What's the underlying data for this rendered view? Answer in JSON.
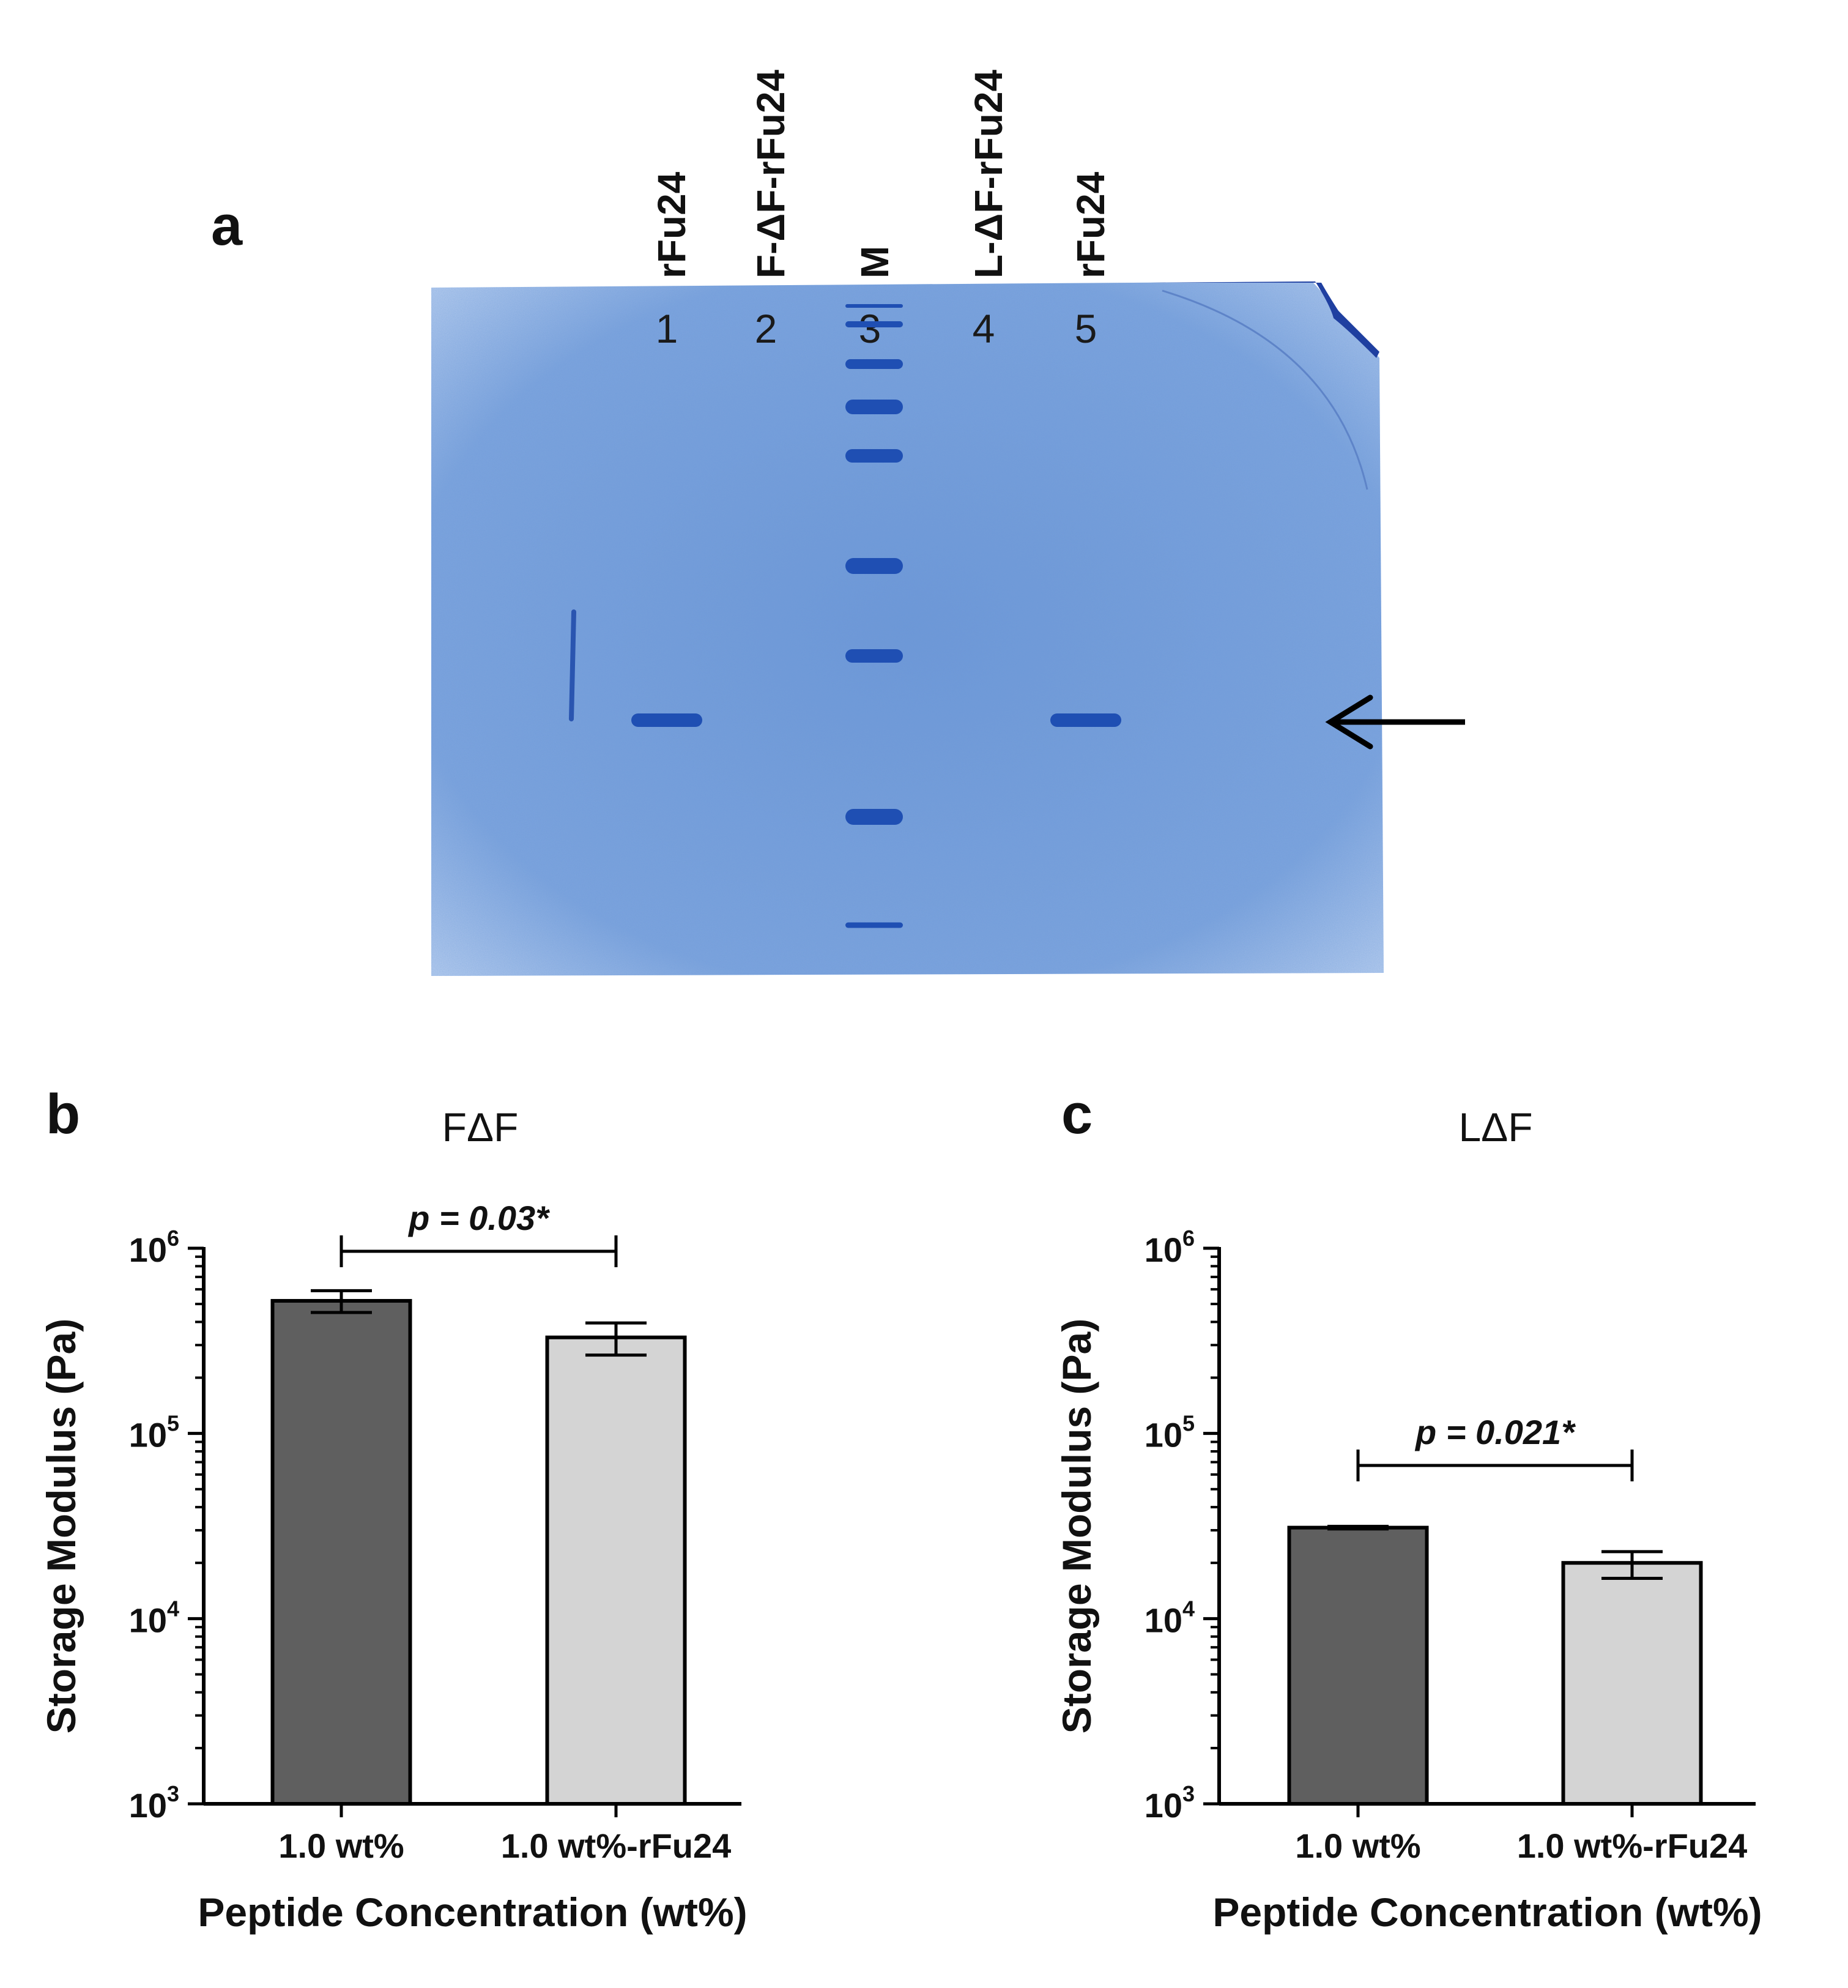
{
  "figure": {
    "panel_labels": {
      "a": "a",
      "b": "b",
      "c": "c"
    }
  },
  "gel": {
    "column_headers": [
      "rFu24",
      "F-ΔF-rFu24",
      "M",
      "L-ΔF-rFu24",
      "rFu24"
    ],
    "lane_numbers": [
      "1",
      "2",
      "3",
      "4",
      "5"
    ],
    "colors": {
      "gel": "#7ea4dc",
      "band": "#1f4fb3",
      "arrow": "#000000"
    },
    "band_lanes": [
      1,
      5
    ]
  },
  "chart_data": [
    {
      "type": "bar",
      "panel": "b",
      "title": "FΔF",
      "categories": [
        "1.0 wt%",
        "1.0 wt%-rFu24"
      ],
      "values": [
        520000,
        330000
      ],
      "error_low": [
        450000,
        265000
      ],
      "error_high": [
        590000,
        395000
      ],
      "bar_colors": [
        "#5f5f5f",
        "#d4d4d4"
      ],
      "ylabel": "Storage Modulus (Pa)",
      "xlabel": "Peptide Concentration (wt%)",
      "yscale": "log",
      "ylim": [
        1000,
        1000000
      ],
      "ytick_bases": [
        "10",
        "10",
        "10",
        "10"
      ],
      "ytick_exponents": [
        "3",
        "4",
        "5",
        "6"
      ],
      "annotation": "p = 0.03*",
      "grid": false
    },
    {
      "type": "bar",
      "panel": "c",
      "title": "LΔF",
      "categories": [
        "1.0 wt%",
        "1.0 wt%-rFu24"
      ],
      "values": [
        31000,
        20000
      ],
      "error_low": [
        30500,
        16500
      ],
      "error_high": [
        31500,
        23000
      ],
      "bar_colors": [
        "#5f5f5f",
        "#d4d4d4"
      ],
      "ylabel": "Storage Modulus (Pa)",
      "xlabel": "Peptide Concentration (wt%)",
      "yscale": "log",
      "ylim": [
        1000,
        1000000
      ],
      "ytick_bases": [
        "10",
        "10",
        "10",
        "10"
      ],
      "ytick_exponents": [
        "3",
        "4",
        "5",
        "6"
      ],
      "annotation": "p = 0.021*",
      "grid": false
    }
  ]
}
